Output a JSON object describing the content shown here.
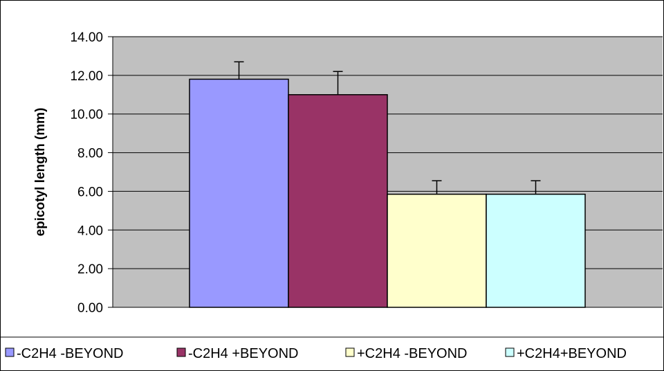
{
  "chart_data": {
    "type": "bar",
    "title": "",
    "xlabel": "",
    "ylabel": "epicotyl length (mm)",
    "ylim": [
      0,
      14
    ],
    "ytick_step": 2,
    "ytick_decimals": 2,
    "grid": true,
    "plot_background": "#c0c0c0",
    "legend_position": "bottom",
    "categories": [
      ""
    ],
    "series": [
      {
        "name": "-C2H4 -BEYOND",
        "values": [
          11.8
        ],
        "error": [
          0.9
        ],
        "color": "#9999ff"
      },
      {
        "name": "-C2H4 +BEYOND",
        "values": [
          11.0
        ],
        "error": [
          1.2
        ],
        "color": "#993366"
      },
      {
        "name": "+C2H4 -BEYOND",
        "values": [
          5.85
        ],
        "error": [
          0.7
        ],
        "color": "#ffffcc"
      },
      {
        "name": "+C2H4+BEYOND",
        "values": [
          5.85
        ],
        "error": [
          0.7
        ],
        "color": "#ccffff"
      }
    ]
  }
}
